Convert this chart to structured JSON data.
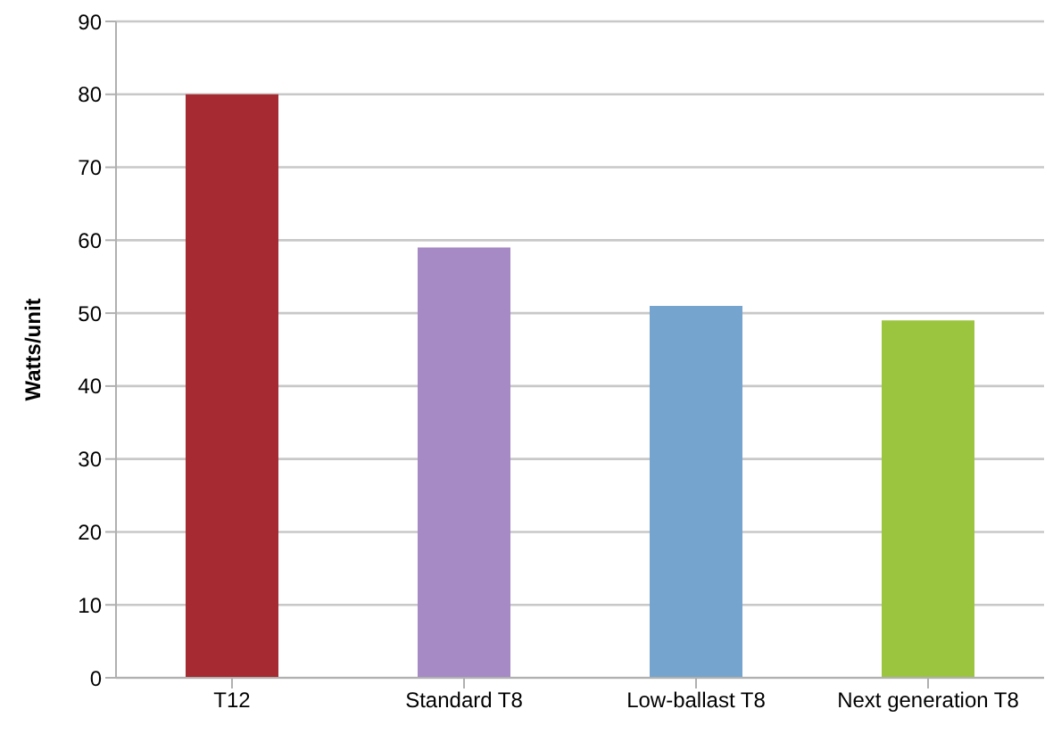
{
  "chart_data": {
    "type": "bar",
    "ylabel": "Watts/unit",
    "categories": [
      "T12",
      "Standard T8",
      "Low-ballast T8",
      "Next generation T8"
    ],
    "values": [
      80,
      59,
      51,
      49
    ],
    "colors": [
      "#a52a31",
      "#a68ac6",
      "#75a5cf",
      "#9bc53f"
    ],
    "ylim": [
      0,
      90
    ],
    "yticks": [
      0,
      10,
      20,
      30,
      40,
      50,
      60,
      70,
      80,
      90
    ],
    "grid": "y"
  }
}
